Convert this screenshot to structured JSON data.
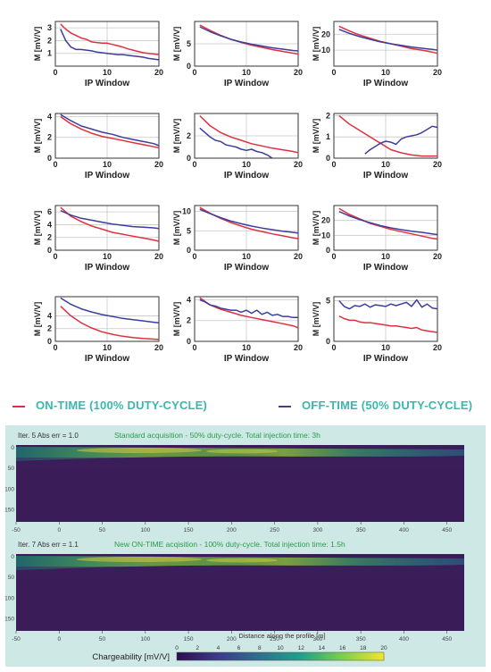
{
  "colors": {
    "on_time": "#e0303f",
    "off_time": "#3d3d9c",
    "legend_text": "#3bb7ae",
    "panel_bg": "#cde8e5",
    "title_green": "#2a9d4a",
    "section_bg": "#3a1d58"
  },
  "legend": {
    "on_label": "ON-TIME (100% DUTY-CYCLE)",
    "off_label": "OFF-TIME (50% DUTY-CYCLE)"
  },
  "chart_data": [
    {
      "type": "line",
      "xlabel": "IP Window",
      "ylabel": "M [mV/V]",
      "xlim": [
        0,
        20
      ],
      "ylim": [
        0,
        3.5
      ],
      "xticks": [
        0,
        10,
        20
      ],
      "yticks": [
        1,
        2,
        3
      ],
      "series": [
        {
          "name": "ON-TIME (100% DUTY-CYCLE)",
          "x": [
            1,
            2,
            3,
            4,
            5,
            6,
            7,
            8,
            9,
            10,
            11,
            12,
            13,
            14,
            15,
            16,
            17,
            18,
            19,
            20
          ],
          "values": [
            3.3,
            2.9,
            2.6,
            2.4,
            2.2,
            2.1,
            1.9,
            1.85,
            1.8,
            1.8,
            1.7,
            1.6,
            1.5,
            1.35,
            1.25,
            1.15,
            1.05,
            1.0,
            0.95,
            0.9
          ]
        },
        {
          "name": "OFF-TIME (50% DUTY-CYCLE)",
          "x": [
            1,
            2,
            3,
            4,
            5,
            6,
            7,
            8,
            9,
            10,
            11,
            12,
            13,
            14,
            15,
            16,
            17,
            18,
            19,
            20
          ],
          "values": [
            2.9,
            2.0,
            1.5,
            1.3,
            1.3,
            1.25,
            1.2,
            1.1,
            1.05,
            1.0,
            0.95,
            0.9,
            0.9,
            0.85,
            0.8,
            0.75,
            0.7,
            0.6,
            0.55,
            0.5
          ]
        }
      ]
    },
    {
      "type": "line",
      "xlabel": "IP Window",
      "ylabel": "M [mV/V]",
      "xlim": [
        0,
        20
      ],
      "ylim": [
        0,
        10
      ],
      "xticks": [
        0,
        10,
        20
      ],
      "yticks": [
        0,
        5
      ],
      "series": [
        {
          "name": "ON-TIME (100% DUTY-CYCLE)",
          "x": [
            1,
            3,
            5,
            7,
            9,
            11,
            13,
            15,
            17,
            19,
            20
          ],
          "values": [
            9.2,
            8.0,
            6.9,
            6.0,
            5.3,
            4.7,
            4.2,
            3.7,
            3.3,
            2.9,
            2.7
          ]
        },
        {
          "name": "OFF-TIME (50% DUTY-CYCLE)",
          "x": [
            1,
            3,
            5,
            7,
            9,
            11,
            13,
            15,
            17,
            19,
            20
          ],
          "values": [
            8.8,
            7.7,
            6.8,
            6.0,
            5.4,
            4.9,
            4.5,
            4.1,
            3.8,
            3.5,
            3.4
          ]
        }
      ]
    },
    {
      "type": "line",
      "xlabel": "IP Window",
      "ylabel": "M [mV/V]",
      "xlim": [
        0,
        20
      ],
      "ylim": [
        0,
        28
      ],
      "xticks": [
        0,
        10,
        20
      ],
      "yticks": [
        10,
        20
      ],
      "series": [
        {
          "name": "ON-TIME (100% DUTY-CYCLE)",
          "x": [
            1,
            3,
            5,
            7,
            9,
            11,
            13,
            15,
            17,
            19,
            20
          ],
          "values": [
            25,
            22,
            19.5,
            17.5,
            15.5,
            14,
            12.5,
            11,
            10,
            8.8,
            8
          ]
        },
        {
          "name": "OFF-TIME (50% DUTY-CYCLE)",
          "x": [
            1,
            3,
            5,
            7,
            9,
            11,
            13,
            15,
            17,
            19,
            20
          ],
          "values": [
            23,
            20.5,
            18.5,
            16.8,
            15.2,
            14,
            13,
            12,
            11.2,
            10.5,
            10
          ]
        }
      ]
    },
    {
      "type": "line",
      "xlabel": "IP Window",
      "ylabel": "M [mV/V]",
      "xlim": [
        0,
        20
      ],
      "ylim": [
        0,
        4.3
      ],
      "xticks": [
        0,
        10,
        20
      ],
      "yticks": [
        0,
        2,
        4
      ],
      "series": [
        {
          "name": "ON-TIME (100% DUTY-CYCLE)",
          "x": [
            1,
            3,
            5,
            7,
            9,
            11,
            13,
            15,
            17,
            19,
            20
          ],
          "values": [
            4.0,
            3.3,
            2.8,
            2.4,
            2.1,
            1.9,
            1.7,
            1.5,
            1.3,
            1.1,
            1.0
          ]
        },
        {
          "name": "OFF-TIME (50% DUTY-CYCLE)",
          "x": [
            1,
            3,
            5,
            7,
            9,
            11,
            13,
            15,
            17,
            19,
            20
          ],
          "values": [
            4.2,
            3.6,
            3.1,
            2.8,
            2.5,
            2.3,
            2.0,
            1.8,
            1.6,
            1.4,
            1.2
          ]
        }
      ]
    },
    {
      "type": "line",
      "xlabel": "IP Window",
      "ylabel": "M [mV/V]",
      "xlim": [
        0,
        20
      ],
      "ylim": [
        0,
        4
      ],
      "xticks": [
        0,
        10,
        20
      ],
      "yticks": [
        0,
        2
      ],
      "series": [
        {
          "name": "ON-TIME (100% DUTY-CYCLE)",
          "x": [
            1,
            3,
            5,
            7,
            9,
            11,
            13,
            15,
            17,
            19,
            20
          ],
          "values": [
            3.8,
            2.9,
            2.3,
            1.9,
            1.6,
            1.3,
            1.1,
            0.9,
            0.75,
            0.6,
            0.5
          ]
        },
        {
          "name": "OFF-TIME (50% DUTY-CYCLE)",
          "x": [
            1,
            2,
            3,
            4,
            5,
            6,
            7,
            8,
            9,
            10,
            11,
            12,
            13,
            14,
            15
          ],
          "values": [
            2.7,
            2.3,
            1.9,
            1.6,
            1.5,
            1.2,
            1.1,
            1.0,
            0.8,
            0.7,
            0.8,
            0.6,
            0.5,
            0.3,
            0.0
          ]
        }
      ]
    },
    {
      "type": "line",
      "xlabel": "IP Window",
      "ylabel": "M [mV/V]",
      "xlim": [
        0,
        20
      ],
      "ylim": [
        0,
        2.1
      ],
      "xticks": [
        0,
        10,
        20
      ],
      "yticks": [
        0,
        1,
        2
      ],
      "series": [
        {
          "name": "ON-TIME (100% DUTY-CYCLE)",
          "x": [
            1,
            3,
            5,
            7,
            9,
            11,
            13,
            15,
            17,
            19,
            20
          ],
          "values": [
            2.0,
            1.6,
            1.3,
            1.0,
            0.7,
            0.4,
            0.25,
            0.15,
            0.1,
            0.1,
            0.1
          ]
        },
        {
          "name": "OFF-TIME (50% DUTY-CYCLE)",
          "x": [
            6,
            7,
            8,
            9,
            10,
            11,
            12,
            13,
            14,
            15,
            16,
            17,
            18,
            19,
            20
          ],
          "values": [
            0.2,
            0.4,
            0.55,
            0.7,
            0.8,
            0.75,
            0.65,
            0.9,
            1.0,
            1.05,
            1.1,
            1.2,
            1.35,
            1.5,
            1.45
          ]
        }
      ]
    },
    {
      "type": "line",
      "xlabel": "IP Window",
      "ylabel": "M [mV/V]",
      "xlim": [
        0,
        20
      ],
      "ylim": [
        0,
        7
      ],
      "xticks": [
        0,
        10,
        20
      ],
      "yticks": [
        0,
        2,
        4,
        6
      ],
      "series": [
        {
          "name": "ON-TIME (100% DUTY-CYCLE)",
          "x": [
            1,
            3,
            5,
            7,
            9,
            11,
            13,
            15,
            17,
            19,
            20
          ],
          "values": [
            6.7,
            5.3,
            4.5,
            3.8,
            3.3,
            2.8,
            2.5,
            2.2,
            1.9,
            1.6,
            1.4
          ]
        },
        {
          "name": "OFF-TIME (50% DUTY-CYCLE)",
          "x": [
            1,
            3,
            5,
            7,
            9,
            11,
            13,
            15,
            17,
            19,
            20
          ],
          "values": [
            6.2,
            5.5,
            5.0,
            4.7,
            4.4,
            4.1,
            3.9,
            3.7,
            3.6,
            3.5,
            3.4
          ]
        }
      ]
    },
    {
      "type": "line",
      "xlabel": "IP Window",
      "ylabel": "M [mV/V]",
      "xlim": [
        0,
        20
      ],
      "ylim": [
        0,
        11.5
      ],
      "xticks": [
        0,
        10,
        20
      ],
      "yticks": [
        0,
        5,
        10
      ],
      "series": [
        {
          "name": "ON-TIME (100% DUTY-CYCLE)",
          "x": [
            1,
            3,
            5,
            7,
            9,
            11,
            13,
            15,
            17,
            19,
            20
          ],
          "values": [
            11,
            9.5,
            8.2,
            7.1,
            6.2,
            5.4,
            4.8,
            4.2,
            3.7,
            3.2,
            3.0
          ]
        },
        {
          "name": "OFF-TIME (50% DUTY-CYCLE)",
          "x": [
            1,
            3,
            5,
            7,
            9,
            11,
            13,
            15,
            17,
            19,
            20
          ],
          "values": [
            10.5,
            9.4,
            8.4,
            7.5,
            6.8,
            6.2,
            5.7,
            5.3,
            4.9,
            4.6,
            4.4
          ]
        }
      ]
    },
    {
      "type": "line",
      "xlabel": "IP Window",
      "ylabel": "M [mV/V]",
      "xlim": [
        0,
        20
      ],
      "ylim": [
        0,
        30
      ],
      "xticks": [
        0,
        10,
        20
      ],
      "yticks": [
        0,
        10,
        20
      ],
      "series": [
        {
          "name": "ON-TIME (100% DUTY-CYCLE)",
          "x": [
            1,
            3,
            5,
            7,
            9,
            11,
            13,
            15,
            17,
            19,
            20
          ],
          "values": [
            28,
            24,
            21,
            18,
            16,
            14,
            12.5,
            11,
            9.5,
            8,
            7.5
          ]
        },
        {
          "name": "OFF-TIME (50% DUTY-CYCLE)",
          "x": [
            1,
            3,
            5,
            7,
            9,
            11,
            13,
            15,
            17,
            19,
            20
          ],
          "values": [
            26,
            23,
            20.5,
            18.5,
            16.5,
            15,
            13.8,
            12.8,
            12,
            11,
            10.5
          ]
        }
      ]
    },
    {
      "type": "line",
      "xlabel": "IP Window",
      "ylabel": "M [mV/V]",
      "xlim": [
        0,
        20
      ],
      "ylim": [
        0,
        7
      ],
      "xticks": [
        0,
        10,
        20
      ],
      "yticks": [
        0,
        2,
        4
      ],
      "series": [
        {
          "name": "ON-TIME (100% DUTY-CYCLE)",
          "x": [
            1,
            3,
            5,
            7,
            9,
            11,
            13,
            15,
            17,
            19,
            20
          ],
          "values": [
            5.5,
            4.0,
            2.9,
            2.1,
            1.5,
            1.1,
            0.8,
            0.6,
            0.45,
            0.35,
            0.3
          ]
        },
        {
          "name": "OFF-TIME (50% DUTY-CYCLE)",
          "x": [
            1,
            3,
            5,
            7,
            9,
            11,
            13,
            15,
            17,
            19,
            20
          ],
          "values": [
            6.8,
            5.8,
            5.1,
            4.6,
            4.2,
            3.9,
            3.6,
            3.4,
            3.2,
            3.0,
            2.9
          ]
        }
      ]
    },
    {
      "type": "line",
      "xlabel": "IP Window",
      "ylabel": "M [mV/V]",
      "xlim": [
        0,
        20
      ],
      "ylim": [
        0,
        4.3
      ],
      "xticks": [
        0,
        10,
        20
      ],
      "yticks": [
        0,
        2,
        4
      ],
      "series": [
        {
          "name": "ON-TIME (100% DUTY-CYCLE)",
          "x": [
            1,
            3,
            5,
            7,
            9,
            11,
            13,
            15,
            17,
            19,
            20
          ],
          "values": [
            4.2,
            3.5,
            3.1,
            2.8,
            2.5,
            2.3,
            2.1,
            1.9,
            1.7,
            1.5,
            1.3
          ]
        },
        {
          "name": "OFF-TIME (50% DUTY-CYCLE)",
          "x": [
            1,
            2,
            3,
            4,
            5,
            6,
            7,
            8,
            9,
            10,
            11,
            12,
            13,
            14,
            15,
            16,
            17,
            18,
            19,
            20
          ],
          "values": [
            4.0,
            3.8,
            3.5,
            3.4,
            3.2,
            3.1,
            3.0,
            3.0,
            2.8,
            3.0,
            2.7,
            3.0,
            2.6,
            2.8,
            2.5,
            2.6,
            2.4,
            2.4,
            2.3,
            2.3
          ]
        }
      ]
    },
    {
      "type": "line",
      "xlabel": "IP Window",
      "ylabel": "M [mV/V]",
      "xlim": [
        0,
        20
      ],
      "ylim": [
        0,
        5.5
      ],
      "xticks": [
        0,
        10,
        20
      ],
      "yticks": [
        0,
        5
      ],
      "series": [
        {
          "name": "ON-TIME (100% DUTY-CYCLE)",
          "x": [
            1,
            2,
            3,
            4,
            5,
            6,
            7,
            8,
            9,
            10,
            11,
            12,
            13,
            14,
            15,
            16,
            17,
            18,
            19,
            20
          ],
          "values": [
            3.1,
            2.8,
            2.6,
            2.6,
            2.4,
            2.3,
            2.3,
            2.2,
            2.1,
            2.0,
            1.9,
            1.9,
            1.8,
            1.7,
            1.6,
            1.7,
            1.4,
            1.3,
            1.2,
            1.1
          ]
        },
        {
          "name": "OFF-TIME (50% DUTY-CYCLE)",
          "x": [
            1,
            2,
            3,
            4,
            5,
            6,
            7,
            8,
            9,
            10,
            11,
            12,
            13,
            14,
            15,
            16,
            17,
            18,
            19,
            20
          ],
          "values": [
            5.0,
            4.3,
            4.0,
            4.4,
            4.3,
            4.6,
            4.2,
            4.5,
            4.4,
            4.3,
            4.6,
            4.4,
            4.6,
            4.8,
            4.3,
            5.1,
            4.2,
            4.6,
            4.1,
            4.0
          ]
        }
      ]
    }
  ],
  "sections": [
    {
      "iter": "Iter. 5 Abs err = 1.0",
      "title": "Standard acquisition - 50% duty-cycle. Total injection time: 3h",
      "y_ticks": [
        "0",
        "50",
        "100",
        "150"
      ],
      "x_ticks": [
        "-50",
        "0",
        "50",
        "100",
        "150",
        "200",
        "250",
        "300",
        "350",
        "400",
        "450"
      ]
    },
    {
      "iter": "Iter. 7 Abs err = 1.1",
      "title": "New ON-TIME acqisition - 100% duty-cycle. Total injection time: 1.5h",
      "y_ticks": [
        "0",
        "50",
        "100",
        "150"
      ],
      "x_ticks": [
        "-50",
        "0",
        "50",
        "100",
        "150",
        "200",
        "250",
        "300",
        "350",
        "400",
        "450"
      ]
    }
  ],
  "section_axis": {
    "x_range": [
      -50,
      470
    ],
    "depth_range": [
      -5,
      180
    ],
    "y_ticks_values": [
      0,
      50,
      100,
      150
    ]
  },
  "colorbar": {
    "xlabel": "Distance along the profile [m]",
    "label": "Chargeability [mV/V]",
    "ticks": [
      "0",
      "2",
      "4",
      "6",
      "8",
      "10",
      "12",
      "14",
      "16",
      "18",
      "20"
    ],
    "range": [
      0,
      20
    ]
  }
}
